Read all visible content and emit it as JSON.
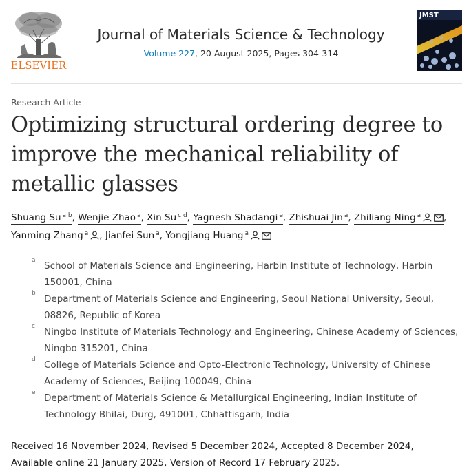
{
  "journal": {
    "publisher": "ELSEVIER",
    "title": "Journal of Materials Science & Technology",
    "volume_link": "Volume 227",
    "issue_info": ", 20 August 2025, Pages 304-314",
    "cover_label": "JMST"
  },
  "article": {
    "type": "Research Article",
    "title": "Optimizing structural ordering degree to improve the mechanical reliability of metallic glasses"
  },
  "authors": [
    {
      "name": "Shuang Su",
      "aff": "a b",
      "person": false,
      "email": false,
      "sep": ","
    },
    {
      "name": "Wenjie Zhao",
      "aff": "a",
      "person": false,
      "email": false,
      "sep": ","
    },
    {
      "name": "Xin Su",
      "aff": "c d",
      "person": false,
      "email": false,
      "sep": ","
    },
    {
      "name": "Yagnesh Shadangi",
      "aff": "e",
      "person": false,
      "email": false,
      "sep": ","
    },
    {
      "name": "Zhishuai Jin",
      "aff": "a",
      "person": false,
      "email": false,
      "sep": ","
    },
    {
      "name": "Zhiliang Ning",
      "aff": "a",
      "person": true,
      "email": true,
      "sep": ","
    },
    {
      "name": "Yanming Zhang",
      "aff": "a",
      "person": true,
      "email": false,
      "sep": ","
    },
    {
      "name": "Jianfei Sun",
      "aff": "a",
      "person": false,
      "email": false,
      "sep": ","
    },
    {
      "name": "Yongjiang Huang",
      "aff": "a",
      "person": true,
      "email": true,
      "sep": ""
    }
  ],
  "affiliations": [
    {
      "letter": "a",
      "text": "School of Materials Science and Engineering, Harbin Institute of Technology, Harbin 150001, China"
    },
    {
      "letter": "b",
      "text": "Department of Materials Science and Engineering, Seoul National University, Seoul, 08826, Republic of Korea"
    },
    {
      "letter": "c",
      "text": "Ningbo Institute of Materials Technology and Engineering, Chinese Academy of Sciences, Ningbo 315201, China"
    },
    {
      "letter": "d",
      "text": "College of Materials Science and Opto-Electronic Technology, University of Chinese Academy of Sciences, Beijing 100049, China"
    },
    {
      "letter": "e",
      "text": "Department of Materials Science & Metallurgical Engineering, Indian Institute of Technology Bhilai, Durg, 491001, Chhattisgarh, India"
    }
  ],
  "history": "Received 16 November 2024, Revised 5 December 2024, Accepted 8 December 2024, Available online 21 January 2025, Version of Record 17 February 2025.",
  "colors": {
    "publisher_orange": "#e9711c",
    "link_blue": "#0c7dbb"
  }
}
